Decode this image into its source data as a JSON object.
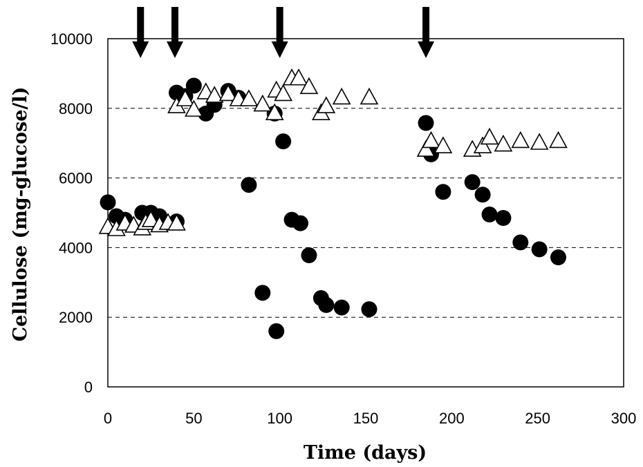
{
  "chart_data": {
    "type": "scatter",
    "xlabel": "Time (days)",
    "ylabel": "Cellulose (mg-glucose/l)",
    "xlim": [
      0,
      300
    ],
    "ylim": [
      0,
      10000
    ],
    "x_ticks": [
      0,
      50,
      100,
      150,
      200,
      250,
      300
    ],
    "y_ticks": [
      0,
      2000,
      4000,
      6000,
      8000,
      10000
    ],
    "grid": "horizontal dashed lines at 2000, 4000, 6000, 8000",
    "legend": "none",
    "arrows_at_days": [
      19,
      39,
      100,
      185
    ],
    "series": [
      {
        "marker": "filled-circle",
        "color": "#000000",
        "points": [
          [
            0,
            5300
          ],
          [
            5,
            4900
          ],
          [
            10,
            4800
          ],
          [
            20,
            5000
          ],
          [
            25,
            5000
          ],
          [
            30,
            4900
          ],
          [
            40,
            4750
          ],
          [
            40,
            8450
          ],
          [
            45,
            8350
          ],
          [
            50,
            8650
          ],
          [
            57,
            7850
          ],
          [
            62,
            8100
          ],
          [
            70,
            8500
          ],
          [
            76,
            8300
          ],
          [
            82,
            5800
          ],
          [
            90,
            2700
          ],
          [
            97,
            7850
          ],
          [
            98,
            1600
          ],
          [
            102,
            7050
          ],
          [
            107,
            4800
          ],
          [
            112,
            4700
          ],
          [
            117,
            3780
          ],
          [
            124,
            2550
          ],
          [
            127,
            2350
          ],
          [
            136,
            2280
          ],
          [
            152,
            2230
          ],
          [
            185,
            7580
          ],
          [
            188,
            6680
          ],
          [
            195,
            5600
          ],
          [
            212,
            5880
          ],
          [
            218,
            5520
          ],
          [
            222,
            4950
          ],
          [
            230,
            4850
          ],
          [
            240,
            4150
          ],
          [
            251,
            3950
          ],
          [
            262,
            3720
          ]
        ]
      },
      {
        "marker": "open-triangle",
        "color": "#000000",
        "points": [
          [
            0,
            4580
          ],
          [
            5,
            4520
          ],
          [
            10,
            4680
          ],
          [
            15,
            4620
          ],
          [
            20,
            4540
          ],
          [
            22,
            4700
          ],
          [
            25,
            4780
          ],
          [
            30,
            4630
          ],
          [
            35,
            4700
          ],
          [
            40,
            4680
          ],
          [
            40,
            8050
          ],
          [
            45,
            8250
          ],
          [
            50,
            7950
          ],
          [
            57,
            8450
          ],
          [
            62,
            8350
          ],
          [
            70,
            8400
          ],
          [
            76,
            8250
          ],
          [
            82,
            8250
          ],
          [
            90,
            8100
          ],
          [
            97,
            7850
          ],
          [
            98,
            8500
          ],
          [
            102,
            8400
          ],
          [
            107,
            8850
          ],
          [
            111,
            8850
          ],
          [
            117,
            8600
          ],
          [
            124,
            7850
          ],
          [
            127,
            8050
          ],
          [
            136,
            8300
          ],
          [
            152,
            8300
          ],
          [
            185,
            6800
          ],
          [
            188,
            7050
          ],
          [
            195,
            6900
          ],
          [
            212,
            6800
          ],
          [
            218,
            6900
          ],
          [
            222,
            7150
          ],
          [
            230,
            6950
          ],
          [
            240,
            7050
          ],
          [
            251,
            7000
          ],
          [
            262,
            7050
          ]
        ]
      }
    ]
  }
}
